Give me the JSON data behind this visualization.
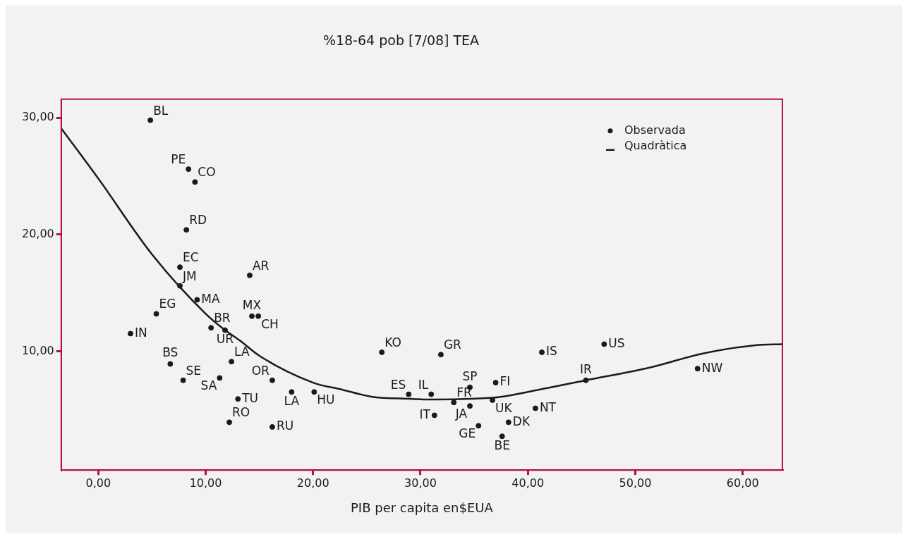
{
  "chart_data": {
    "type": "scatter",
    "title": "%18-64 pob [7/08] TEA",
    "xlabel": "PIB per capita en$EUA",
    "xlim": [
      -3.45,
      63.7
    ],
    "xticks": [
      {
        "value": 0,
        "label": "0,00"
      },
      {
        "value": 10,
        "label": "10,00"
      },
      {
        "value": 20,
        "label": "20,00"
      },
      {
        "value": 30,
        "label": "30,00"
      },
      {
        "value": 40,
        "label": "40,00"
      },
      {
        "value": 50,
        "label": "50,00"
      },
      {
        "value": 60,
        "label": "60,00"
      }
    ],
    "ylim": [
      -0.2,
      31.6
    ],
    "yticks": [
      {
        "value": 10,
        "label": "10,00"
      },
      {
        "value": 20,
        "label": "20,00"
      },
      {
        "value": 30,
        "label": "30,00"
      }
    ],
    "grid": false,
    "legend": "top right",
    "marker": "circle",
    "series": [
      {
        "name": "Observada",
        "type": "scatter",
        "color": "#1a1a1a",
        "x": [
          4.85,
          8.4,
          9.0,
          8.2,
          7.6,
          14.1,
          7.6,
          9.2,
          5.4,
          14.3,
          14.9,
          10.5,
          11.8,
          3.0,
          6.7,
          12.4,
          7.9,
          11.3,
          16.2,
          13.0,
          18.0,
          20.1,
          12.2,
          16.2,
          26.4,
          31.9,
          28.9,
          31.0,
          33.1,
          34.6,
          37.0,
          31.3,
          34.6,
          36.7,
          35.4,
          38.2,
          37.6,
          40.7,
          41.3,
          47.1,
          45.4,
          55.8
        ],
        "values": [
          29.8,
          25.6,
          24.5,
          20.4,
          17.2,
          16.5,
          15.6,
          14.4,
          13.2,
          13.0,
          13.0,
          12.0,
          11.8,
          11.5,
          8.9,
          9.1,
          7.5,
          7.7,
          7.5,
          5.9,
          6.5,
          6.5,
          3.9,
          3.5,
          9.9,
          9.7,
          6.3,
          6.3,
          5.6,
          6.9,
          7.3,
          4.5,
          5.3,
          5.8,
          3.6,
          3.9,
          2.7,
          5.1,
          9.9,
          10.6,
          7.5,
          8.5
        ]
      },
      {
        "name": "Quadràtica",
        "type": "line",
        "color": "#1a1a1a",
        "marker": "none",
        "x": [
          -3.45,
          0,
          5,
          10,
          11.8,
          13.2,
          15,
          20,
          22.7,
          25.4,
          29.3,
          30.3,
          36.7,
          41.6,
          45.4,
          51.4,
          56.3,
          61.2,
          63.7
        ],
        "values": [
          29.1,
          24.8,
          18.3,
          13.2,
          11.8,
          10.9,
          9.6,
          7.3,
          6.7,
          6.1,
          5.9,
          5.85,
          6.0,
          6.8,
          7.5,
          8.6,
          9.8,
          10.5,
          10.6
        ]
      }
    ],
    "annotations": [
      {
        "text": "BL",
        "x": 4.85,
        "y": 29.8
      },
      {
        "text": "PE",
        "x": 8.4,
        "y": 25.6
      },
      {
        "text": "CO",
        "x": 9.0,
        "y": 24.5
      },
      {
        "text": "RD",
        "x": 8.2,
        "y": 20.4
      },
      {
        "text": "EC",
        "x": 7.6,
        "y": 17.2
      },
      {
        "text": "AR",
        "x": 14.1,
        "y": 16.5
      },
      {
        "text": "JM",
        "x": 7.6,
        "y": 15.6
      },
      {
        "text": "MA",
        "x": 9.2,
        "y": 14.4
      },
      {
        "text": "EG",
        "x": 5.4,
        "y": 13.2
      },
      {
        "text": "MX",
        "x": 14.3,
        "y": 13.0
      },
      {
        "text": "CH",
        "x": 14.9,
        "y": 13.0
      },
      {
        "text": "BR",
        "x": 10.5,
        "y": 12.0
      },
      {
        "text": "UR",
        "x": 11.8,
        "y": 11.8
      },
      {
        "text": "IN",
        "x": 3.0,
        "y": 11.5
      },
      {
        "text": "BS",
        "x": 6.7,
        "y": 8.9
      },
      {
        "text": "LA",
        "x": 12.4,
        "y": 9.1
      },
      {
        "text": "SE",
        "x": 7.9,
        "y": 7.5
      },
      {
        "text": "SA",
        "x": 11.3,
        "y": 7.7
      },
      {
        "text": "OR",
        "x": 16.2,
        "y": 7.5
      },
      {
        "text": "TU",
        "x": 13.0,
        "y": 5.9
      },
      {
        "text": "LA",
        "x": 18.0,
        "y": 6.5
      },
      {
        "text": "HU",
        "x": 20.1,
        "y": 6.5
      },
      {
        "text": "RO",
        "x": 12.2,
        "y": 3.9
      },
      {
        "text": "RU",
        "x": 16.2,
        "y": 3.5
      },
      {
        "text": "KO",
        "x": 26.4,
        "y": 9.9
      },
      {
        "text": "GR",
        "x": 31.9,
        "y": 9.7
      },
      {
        "text": "ES",
        "x": 28.9,
        "y": 6.3
      },
      {
        "text": "IL",
        "x": 31.0,
        "y": 6.3
      },
      {
        "text": "FR",
        "x": 33.1,
        "y": 5.6
      },
      {
        "text": "SP",
        "x": 34.6,
        "y": 6.9
      },
      {
        "text": "FI",
        "x": 37.0,
        "y": 7.3
      },
      {
        "text": "IT",
        "x": 31.3,
        "y": 4.5
      },
      {
        "text": "JA",
        "x": 34.6,
        "y": 5.3
      },
      {
        "text": "UK",
        "x": 36.7,
        "y": 5.8
      },
      {
        "text": "GE",
        "x": 35.4,
        "y": 3.6
      },
      {
        "text": "DK",
        "x": 38.2,
        "y": 3.9
      },
      {
        "text": "BE",
        "x": 37.6,
        "y": 2.7
      },
      {
        "text": "NT",
        "x": 40.7,
        "y": 5.1
      },
      {
        "text": "IS",
        "x": 41.3,
        "y": 9.9
      },
      {
        "text": "US",
        "x": 47.1,
        "y": 10.6
      },
      {
        "text": "IR",
        "x": 45.4,
        "y": 7.5
      },
      {
        "text": "NW",
        "x": 55.8,
        "y": 8.5
      }
    ]
  }
}
